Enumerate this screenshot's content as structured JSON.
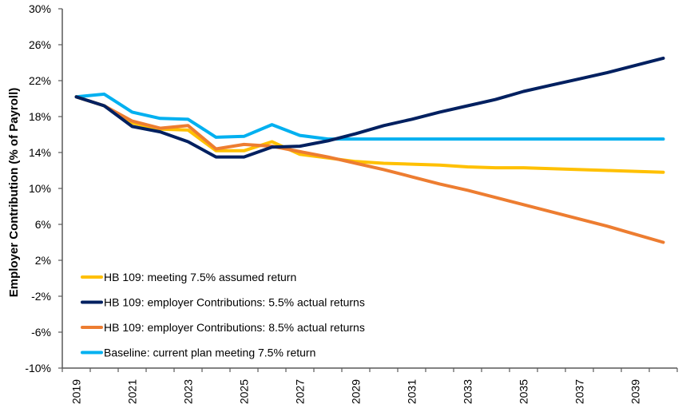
{
  "chart_data": {
    "type": "line",
    "title": "",
    "xlabel": "",
    "ylabel": "Employer Contribution (% of Payroll)",
    "ylim": [
      -10,
      30
    ],
    "yticks": [
      30,
      26,
      22,
      18,
      14,
      10,
      6,
      2,
      -2,
      -6,
      -10
    ],
    "ytick_labels": [
      "30%",
      "26%",
      "22%",
      "18%",
      "14%",
      "10%",
      "6%",
      "2%",
      "-2%",
      "-6%",
      "-10%"
    ],
    "x": [
      2019,
      2020,
      2021,
      2022,
      2023,
      2024,
      2025,
      2026,
      2027,
      2028,
      2029,
      2030,
      2031,
      2032,
      2033,
      2034,
      2035,
      2036,
      2037,
      2038,
      2039,
      2040
    ],
    "xtick_labels": [
      "2019",
      "2021",
      "2023",
      "2025",
      "2027",
      "2029",
      "2031",
      "2033",
      "2035",
      "2037",
      "2039"
    ],
    "grid": false,
    "legend_position": "bottom-left (inside plot)",
    "series": [
      {
        "name": "HB 109: meeting 7.5% assumed return",
        "color": "#FFC000",
        "values": [
          20.2,
          19.2,
          17.3,
          16.6,
          16.5,
          14.2,
          14.2,
          15.2,
          13.8,
          13.4,
          13.0,
          12.8,
          12.7,
          12.6,
          12.4,
          12.3,
          12.3,
          12.2,
          12.1,
          12.0,
          11.9,
          11.8
        ]
      },
      {
        "name": "HB 109: employer Contributions: 5.5% actual returns",
        "color": "#002060",
        "values": [
          20.2,
          19.2,
          16.9,
          16.3,
          15.2,
          13.5,
          13.5,
          14.6,
          14.7,
          15.3,
          16.1,
          17.0,
          17.7,
          18.5,
          19.2,
          19.9,
          20.8,
          21.5,
          22.2,
          22.9,
          23.7,
          24.5
        ]
      },
      {
        "name": "HB 109: employer Contributions: 8.5% actual returns",
        "color": "#ED7D31",
        "values": [
          20.2,
          19.2,
          17.5,
          16.7,
          17.0,
          14.4,
          14.9,
          14.7,
          14.1,
          13.5,
          12.8,
          12.1,
          11.3,
          10.5,
          9.8,
          9.0,
          8.2,
          7.4,
          6.6,
          5.8,
          4.9,
          4.0
        ]
      },
      {
        "name": "Baseline: current plan meeting 7.5% return",
        "color": "#00B0F0",
        "values": [
          20.2,
          20.5,
          18.5,
          17.8,
          17.7,
          15.7,
          15.8,
          17.1,
          15.9,
          15.5,
          15.5,
          15.5,
          15.5,
          15.5,
          15.5,
          15.5,
          15.5,
          15.5,
          15.5,
          15.5,
          15.5,
          15.5
        ]
      }
    ],
    "draw_order": [
      3,
      0,
      2,
      1
    ]
  }
}
